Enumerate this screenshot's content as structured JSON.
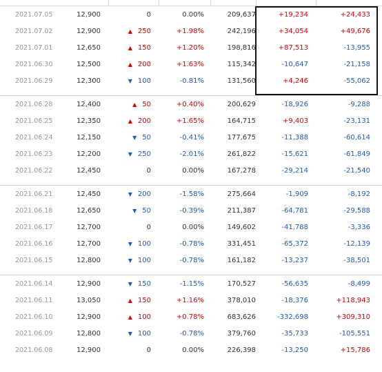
{
  "groups": [
    {
      "rows": [
        {
          "date": "2021.07.05",
          "close": "12,900",
          "dir": "none",
          "change": "0",
          "pct": "0.00%",
          "volume": "209,637",
          "inst": "+19,234",
          "frgn": "+24,433"
        },
        {
          "date": "2021.07.02",
          "close": "12,900",
          "dir": "up",
          "change": "250",
          "pct": "+1.98%",
          "volume": "242,196",
          "inst": "+34,054",
          "frgn": "+49,676"
        },
        {
          "date": "2021.07.01",
          "close": "12,650",
          "dir": "up",
          "change": "150",
          "pct": "+1.20%",
          "volume": "198,816",
          "inst": "+87,513",
          "frgn": "-13,955"
        },
        {
          "date": "2021.06.30",
          "close": "12,500",
          "dir": "up",
          "change": "200",
          "pct": "+1.63%",
          "volume": "115,342",
          "inst": "-10,647",
          "frgn": "-21,158"
        },
        {
          "date": "2021.06.29",
          "close": "12,300",
          "dir": "down",
          "change": "100",
          "pct": "-0.81%",
          "volume": "131,560",
          "inst": "+4,246",
          "frgn": "-55,062"
        }
      ]
    },
    {
      "rows": [
        {
          "date": "2021.06.28",
          "close": "12,400",
          "dir": "up",
          "change": "50",
          "pct": "+0.40%",
          "volume": "200,629",
          "inst": "-18,926",
          "frgn": "-9,288"
        },
        {
          "date": "2021.06.25",
          "close": "12,350",
          "dir": "up",
          "change": "200",
          "pct": "+1.65%",
          "volume": "164,715",
          "inst": "+9,403",
          "frgn": "-23,131"
        },
        {
          "date": "2021.06.24",
          "close": "12,150",
          "dir": "down",
          "change": "50",
          "pct": "-0.41%",
          "volume": "177,675",
          "inst": "-11,388",
          "frgn": "-60,614"
        },
        {
          "date": "2021.06.23",
          "close": "12,200",
          "dir": "down",
          "change": "250",
          "pct": "-2.01%",
          "volume": "261,822",
          "inst": "-15,621",
          "frgn": "-61,849"
        },
        {
          "date": "2021.06.22",
          "close": "12,450",
          "dir": "none",
          "change": "0",
          "pct": "0.00%",
          "volume": "167,278",
          "inst": "-29,214",
          "frgn": "-21,540"
        }
      ]
    },
    {
      "rows": [
        {
          "date": "2021.06.21",
          "close": "12,450",
          "dir": "down",
          "change": "200",
          "pct": "-1.58%",
          "volume": "275,664",
          "inst": "-1,909",
          "frgn": "-8,192"
        },
        {
          "date": "2021.06.18",
          "close": "12,650",
          "dir": "down",
          "change": "50",
          "pct": "-0.39%",
          "volume": "211,387",
          "inst": "-64,781",
          "frgn": "-29,588"
        },
        {
          "date": "2021.06.17",
          "close": "12,700",
          "dir": "none",
          "change": "0",
          "pct": "0.00%",
          "volume": "149,602",
          "inst": "-41,788",
          "frgn": "-3,336"
        },
        {
          "date": "2021.06.16",
          "close": "12,700",
          "dir": "down",
          "change": "100",
          "pct": "-0.78%",
          "volume": "331,451",
          "inst": "-65,372",
          "frgn": "-12,139"
        },
        {
          "date": "2021.06.15",
          "close": "12,800",
          "dir": "down",
          "change": "100",
          "pct": "-0.78%",
          "volume": "161,182",
          "inst": "-13,237",
          "frgn": "-38,501"
        }
      ]
    },
    {
      "rows": [
        {
          "date": "2021.06.14",
          "close": "12,900",
          "dir": "down",
          "change": "150",
          "pct": "-1.15%",
          "volume": "170,527",
          "inst": "-56,635",
          "frgn": "-8,499"
        },
        {
          "date": "2021.06.11",
          "close": "13,050",
          "dir": "up",
          "change": "150",
          "pct": "+1.16%",
          "volume": "378,010",
          "inst": "-18,376",
          "frgn": "+118,943"
        },
        {
          "date": "2021.06.10",
          "close": "12,900",
          "dir": "up",
          "change": "100",
          "pct": "+0.78%",
          "volume": "683,626",
          "inst": "-332,698",
          "frgn": "+309,310"
        },
        {
          "date": "2021.06.09",
          "close": "12,800",
          "dir": "down",
          "change": "100",
          "pct": "-0.78%",
          "volume": "379,760",
          "inst": "-35,733",
          "frgn": "-105,551"
        },
        {
          "date": "2021.06.08",
          "close": "12,900",
          "dir": "none",
          "change": "0",
          "pct": "0.00%",
          "volume": "226,398",
          "inst": "-13,250",
          "frgn": "+15,786"
        }
      ]
    }
  ],
  "colors": {
    "up": "#d60000",
    "down": "#1d5bbf",
    "neutral": "#333333",
    "highlight_border": "#111111"
  },
  "icons": {
    "up": "triangle-up-icon",
    "down": "triangle-down-icon"
  }
}
